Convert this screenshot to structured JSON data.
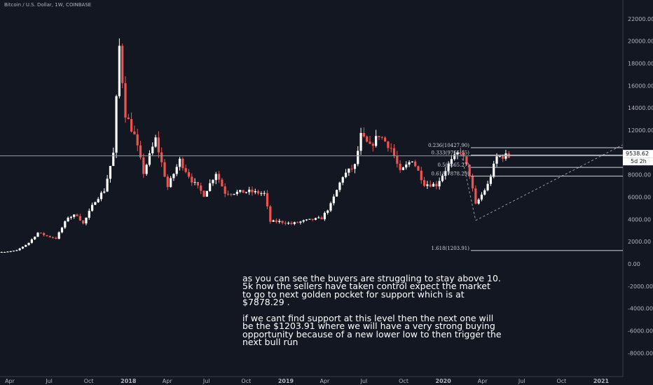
{
  "header": {
    "symbol_title": "Bitcoin / U.S. Dollar, 1W, COINBASE"
  },
  "chart_data": {
    "type": "candlestick",
    "symbol": "Bitcoin / U.S. Dollar",
    "interval": "1W",
    "exchange": "COINBASE",
    "ylim": [
      -9000,
      23000
    ],
    "y_ticks": [
      22000,
      20000,
      18000,
      16000,
      14000,
      12000,
      10000,
      8000,
      6000,
      4000,
      2000,
      0,
      -2000,
      -4000,
      -6000,
      -8000
    ],
    "y_tick_labels": [
      "22000.00",
      "20000.00",
      "18000.00",
      "16000.00",
      "14000.00",
      "12000.00",
      "10000.00",
      "8000.00",
      "6000.00",
      "4000.00",
      "2000.00",
      "0.00",
      "-2000.00",
      "-4000.00",
      "-6000.00",
      "-8000.00"
    ],
    "x_ticks": [
      "Apr",
      "Jul",
      "Oct",
      "2018",
      "Apr",
      "Jul",
      "Oct",
      "2019",
      "Apr",
      "Jul",
      "Oct",
      "2020",
      "Apr",
      "Jul",
      "Oct",
      "2021"
    ],
    "x_tick_dates": [
      "2017-04-01",
      "2017-07-01",
      "2017-10-01",
      "2018-01-01",
      "2018-04-01",
      "2018-07-01",
      "2018-10-01",
      "2019-01-01",
      "2019-04-01",
      "2019-07-01",
      "2019-10-01",
      "2020-01-01",
      "2020-04-01",
      "2020-07-01",
      "2020-10-01",
      "2021-01-01"
    ],
    "weekly_close_path": [
      [
        "2017-02-20",
        1100
      ],
      [
        "2017-03-20",
        1050
      ],
      [
        "2017-04-17",
        1200
      ],
      [
        "2017-05-15",
        1900
      ],
      [
        "2017-06-05",
        2800
      ],
      [
        "2017-06-26",
        2500
      ],
      [
        "2017-07-17",
        2300
      ],
      [
        "2017-08-14",
        4200
      ],
      [
        "2017-09-04",
        4400
      ],
      [
        "2017-09-18",
        3600
      ],
      [
        "2017-10-16",
        5700
      ],
      [
        "2017-11-06",
        6600
      ],
      [
        "2017-11-27",
        9900
      ],
      [
        "2017-12-11",
        19500
      ],
      [
        "2017-12-25",
        13500
      ],
      [
        "2018-01-15",
        11500
      ],
      [
        "2018-02-05",
        8200
      ],
      [
        "2018-03-05",
        11200
      ],
      [
        "2018-04-02",
        6900
      ],
      [
        "2018-04-30",
        9300
      ],
      [
        "2018-05-28",
        7500
      ],
      [
        "2018-06-25",
        6200
      ],
      [
        "2018-07-23",
        8200
      ],
      [
        "2018-08-13",
        6400
      ],
      [
        "2018-09-03",
        6400
      ],
      [
        "2018-10-08",
        6500
      ],
      [
        "2018-11-12",
        6300
      ],
      [
        "2018-11-26",
        3800
      ],
      [
        "2018-12-17",
        3800
      ],
      [
        "2019-01-14",
        3600
      ],
      [
        "2019-02-18",
        3900
      ],
      [
        "2019-03-25",
        4100
      ],
      [
        "2019-04-15",
        5300
      ],
      [
        "2019-05-13",
        7900
      ],
      [
        "2019-06-10",
        8800
      ],
      [
        "2019-06-24",
        11500
      ],
      [
        "2019-07-15",
        10500
      ],
      [
        "2019-08-05",
        11600
      ],
      [
        "2019-09-02",
        10400
      ],
      [
        "2019-09-23",
        8200
      ],
      [
        "2019-10-21",
        9400
      ],
      [
        "2019-11-18",
        7200
      ],
      [
        "2019-12-16",
        7100
      ],
      [
        "2020-01-13",
        8900
      ],
      [
        "2020-02-10",
        10200
      ],
      [
        "2020-03-02",
        8000
      ],
      [
        "2020-03-16",
        5300
      ],
      [
        "2020-04-13",
        7100
      ],
      [
        "2020-05-04",
        9600
      ],
      [
        "2020-05-25",
        9700
      ],
      [
        "2020-06-01",
        9538.62
      ]
    ],
    "annotations": {
      "current_price": "9538.62",
      "countdown": "5d 2h",
      "fib_levels": [
        {
          "label": "0.236(10427.90)",
          "value": 10427.9
        },
        {
          "label": "0.333(9765.15)",
          "value": 9765.15
        },
        {
          "label": "0.5(8665.27)",
          "value": 8665.27
        },
        {
          "label": "0.618(7878.29)",
          "value": 7878.29
        },
        {
          "label": "1.618(1203.91)",
          "value": 1203.91
        }
      ],
      "horizontal_line": 9700
    },
    "grid": false
  },
  "note": {
    "paragraph_1": "as you can see the buyers are struggling to stay above 10. 5k now the sellers have taken control expect the market to go to next golden pocket for support which is at $7878.29 .",
    "paragraph_2": "if we cant find support at this level then the next one will be the $1203.91 where we will have a very strong buying opportunity because of a new lower low to then trigger the next bull run"
  },
  "colors": {
    "background": "#131722",
    "up": "#ffffff",
    "down": "#ef5350",
    "line": "#d1d4dc",
    "axis_text": "#b2b5be"
  }
}
